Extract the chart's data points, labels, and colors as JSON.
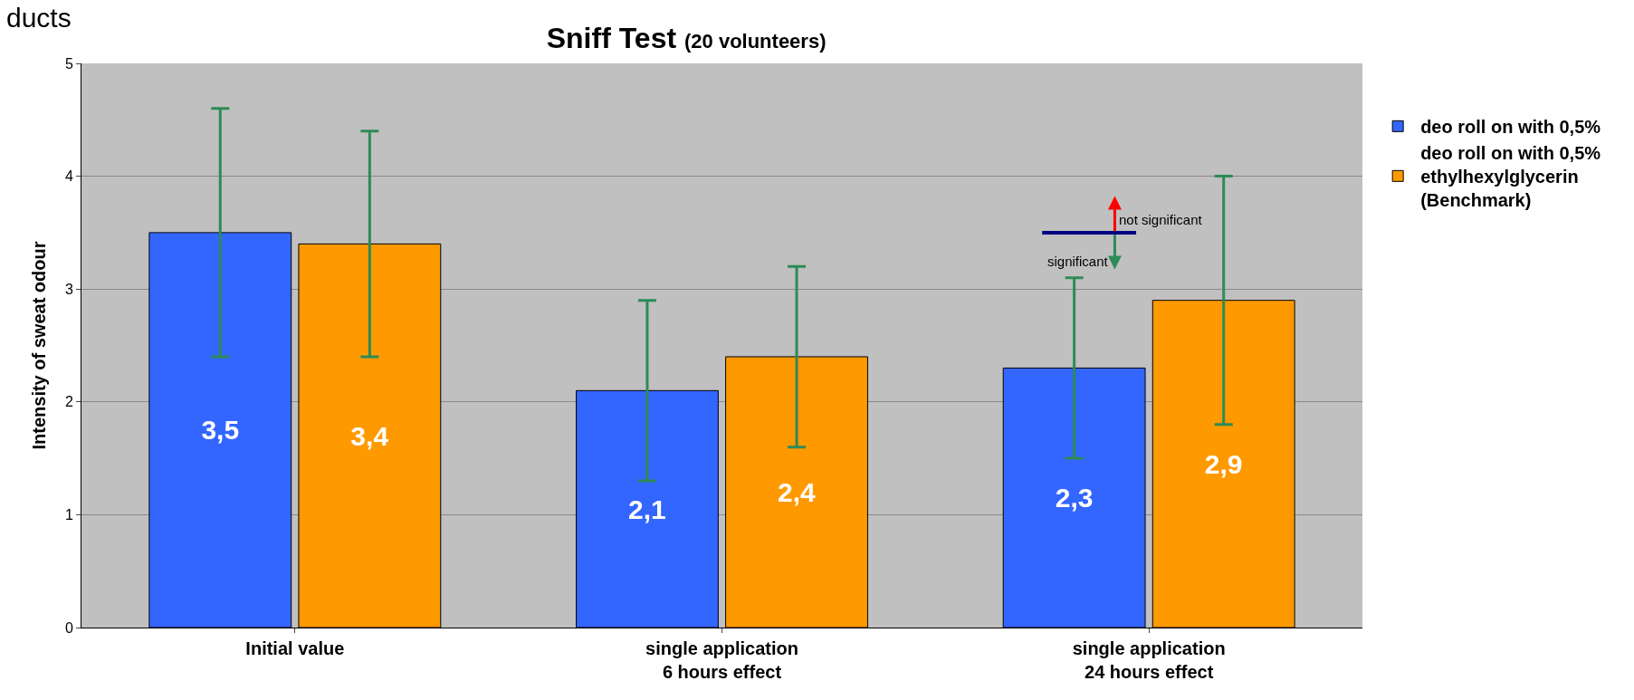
{
  "chart_data": {
    "type": "bar",
    "title": "Sniff Test",
    "subtitle": "(20 volunteers)",
    "ylabel": "Intensity of sweat odour",
    "categories": [
      "Initial value",
      "single application\n6 hours effect",
      "single application\n24 hours effect"
    ],
    "series": [
      {
        "name": "deo roll on with 0,5%",
        "color": "#3366ff",
        "values": [
          3.5,
          2.1,
          2.3
        ],
        "errors": [
          [
            2.4,
            4.6
          ],
          [
            1.3,
            2.9
          ],
          [
            1.5,
            3.1
          ]
        ],
        "value_labels": [
          "3,5",
          "2,1",
          "2,3"
        ]
      },
      {
        "name": "deo roll on with 0,5%\nethylhexylglycerin\n(Benchmark)",
        "color": "#ff9900",
        "values": [
          3.4,
          2.4,
          2.9
        ],
        "errors": [
          [
            2.4,
            4.4
          ],
          [
            1.6,
            3.2
          ],
          [
            1.8,
            4.0
          ]
        ],
        "value_labels": [
          "3,4",
          "2,4",
          "2,9"
        ]
      }
    ],
    "annotations": [
      "not significant",
      "significant",
      "ducts"
    ],
    "ylim": [
      0,
      5
    ],
    "yticks": [
      0,
      1,
      2,
      3,
      4,
      5
    ],
    "grid": "y",
    "legend": "right"
  }
}
